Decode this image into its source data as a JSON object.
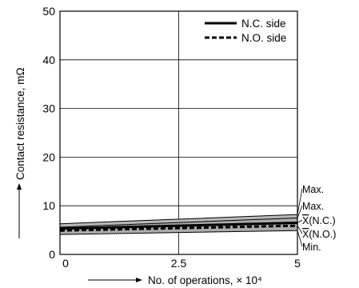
{
  "chart_data": {
    "type": "line",
    "title": "",
    "xlabel": "No. of operations, × 10⁴",
    "ylabel": "Contact resistance, mΩ",
    "xlim": [
      0,
      5
    ],
    "ylim": [
      0,
      50
    ],
    "x_ticks": [
      "0",
      "2.5",
      "5"
    ],
    "y_ticks": [
      "0",
      "10",
      "20",
      "30",
      "40",
      "50"
    ],
    "x_tick_values": [
      0,
      2.5,
      5
    ],
    "y_tick_values": [
      0,
      10,
      20,
      30,
      40,
      50
    ],
    "grid": true,
    "legend_position": "top-right",
    "series": [
      {
        "name": "N.C. side",
        "style": "solid",
        "x": [
          0,
          5
        ],
        "max": [
          6.3,
          8.2
        ],
        "mean": [
          5.3,
          6.5
        ],
        "min": [
          4.8,
          5.6
        ]
      },
      {
        "name": "N.O. side",
        "style": "dashed",
        "x": [
          0,
          5
        ],
        "max": [
          5.6,
          7.5
        ],
        "mean": [
          4.9,
          5.9
        ],
        "min": [
          4.1,
          4.9
        ]
      }
    ],
    "annotations": [
      {
        "text": "Max.",
        "series": "N.C. side",
        "stat": "max"
      },
      {
        "text": "Max.",
        "series": "N.O. side",
        "stat": "max"
      },
      {
        "text": "X",
        "overline": true,
        "suffix": "(N.C.)",
        "series": "N.C. side",
        "stat": "mean"
      },
      {
        "text": "X",
        "overline": true,
        "suffix": "(N.O.)",
        "series": "N.O. side",
        "stat": "mean"
      },
      {
        "text": "Min.",
        "series": "N.O. side",
        "stat": "min"
      }
    ]
  }
}
